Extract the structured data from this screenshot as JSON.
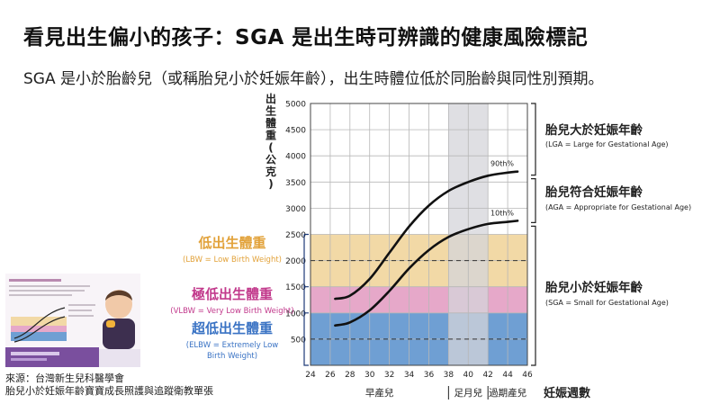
{
  "header": {
    "title": "看見出生偏小的孩子：SGA 是出生時可辨識的健康風險標記",
    "subtitle": "SGA 是小於胎齡兒（或稱胎兒小於妊娠年齡），出生時體位低於同胎齡與同性別預期。"
  },
  "source": {
    "line1": "來源：台灣新生兒科醫學會",
    "line2": "胎兒小於妊娠年齡寶寶成長照護與追蹤衛教單張"
  },
  "colors": {
    "lbw": "#f2d9a6",
    "vlbw": "#e6a8c9",
    "elbw": "#6f9fd3",
    "term": "#d4d4d9",
    "bracket": "#1d3a78",
    "lbw_text": "#e2a23a",
    "vlbw_text": "#c23a8c",
    "elbw_text": "#3a73c4"
  },
  "chart_data": {
    "type": "line",
    "ylabel": "出生體重(公克)",
    "xlabel": "妊娠週數",
    "x_ticks": [
      24,
      26,
      28,
      30,
      32,
      34,
      36,
      38,
      40,
      42,
      44,
      46
    ],
    "y_ticks": [
      500,
      1000,
      1500,
      2000,
      2500,
      3000,
      3500,
      4000,
      4500,
      5000
    ],
    "xlim": [
      24,
      46
    ],
    "ylim": [
      0,
      5000
    ],
    "grid": true,
    "bands": [
      {
        "key": "lbw",
        "label": "低出生體重",
        "sublabel": "(LBW = Low Birth Weight)",
        "from": 1500,
        "to": 2500
      },
      {
        "key": "vlbw",
        "label": "極低出生體重",
        "sublabel": "(VLBW = Very Low Birth Weight)",
        "from": 1000,
        "to": 1500
      },
      {
        "key": "elbw",
        "label": "超低出生體重",
        "sublabel_line1": "(ELBW = Extremely Low",
        "sublabel_line2": "Birth Weight)",
        "from": 0,
        "to": 1000
      }
    ],
    "dashed_lines": [
      2000,
      500
    ],
    "term_band": {
      "from": 38,
      "to": 42
    },
    "series": [
      {
        "name": "90th%",
        "x": [
          26.5,
          28,
          30,
          32,
          34,
          36,
          38,
          40,
          42,
          44,
          45
        ],
        "y": [
          1270,
          1330,
          1650,
          2150,
          2650,
          3050,
          3330,
          3500,
          3620,
          3680,
          3700
        ]
      },
      {
        "name": "10th%",
        "x": [
          26.5,
          28,
          30,
          32,
          34,
          36,
          38,
          40,
          42,
          44,
          45
        ],
        "y": [
          760,
          820,
          1050,
          1420,
          1850,
          2200,
          2450,
          2600,
          2700,
          2740,
          2760
        ]
      }
    ],
    "x_groups": [
      {
        "label": "早產兒",
        "from": 24,
        "to": 38
      },
      {
        "label": "足月兒",
        "from": 38,
        "to": 42
      },
      {
        "label": "過期產兒",
        "from": 42,
        "to": 46
      }
    ],
    "categories_right": [
      {
        "label": "胎兒大於妊娠年齡",
        "sublabel": "(LGA = Large for Gestational Age)"
      },
      {
        "label": "胎兒符合妊娠年齡",
        "sublabel": "(AGA = Appropriate for Gestational Age)"
      },
      {
        "label": "胎兒小於妊娠年齡",
        "sublabel": "(SGA = Small for Gestational Age)"
      }
    ]
  }
}
